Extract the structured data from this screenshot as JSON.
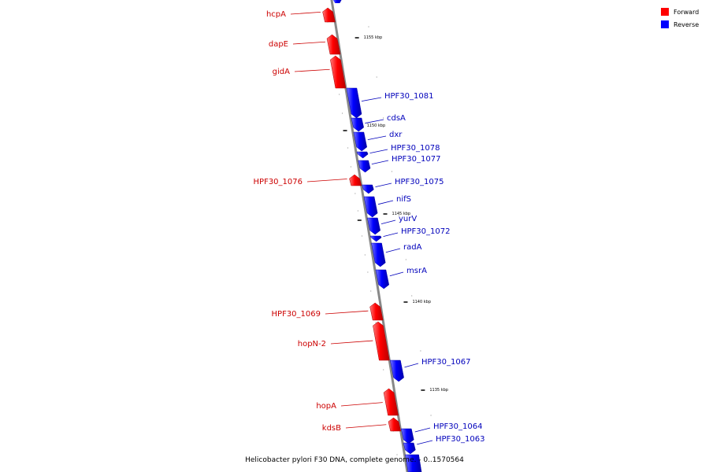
{
  "caption": "Helicobacter pylori F30 DNA, complete genome. - 0..1570564",
  "colors": {
    "forward": "#ff0000",
    "reverse": "#0000ff",
    "forward_text": "#cc0000",
    "reverse_text": "#0000bb",
    "axis": "#888888"
  },
  "legend": [
    {
      "label": "Forward",
      "strand": "forward"
    },
    {
      "label": "Reverse",
      "strand": "reverse"
    }
  ],
  "ticks": [
    {
      "label": "1155 kbp"
    },
    {
      "label": "1150 kbp"
    },
    {
      "label": "1145 kbp"
    },
    {
      "label": "1140 kbp"
    },
    {
      "label": "1135 kbp"
    }
  ],
  "genes": [
    {
      "name": "hcpA",
      "strand": "forward"
    },
    {
      "name": "dapE",
      "strand": "forward"
    },
    {
      "name": "gidA",
      "strand": "forward"
    },
    {
      "name": "HPF30_1081",
      "strand": "reverse"
    },
    {
      "name": "cdsA",
      "strand": "reverse"
    },
    {
      "name": "dxr",
      "strand": "reverse"
    },
    {
      "name": "HPF30_1078",
      "strand": "reverse"
    },
    {
      "name": "HPF30_1077",
      "strand": "reverse"
    },
    {
      "name": "HPF30_1076",
      "strand": "forward"
    },
    {
      "name": "HPF30_1075",
      "strand": "reverse"
    },
    {
      "name": "nifS",
      "strand": "reverse"
    },
    {
      "name": "yurV",
      "strand": "reverse"
    },
    {
      "name": "HPF30_1072",
      "strand": "reverse"
    },
    {
      "name": "radA",
      "strand": "reverse"
    },
    {
      "name": "msrA",
      "strand": "reverse"
    },
    {
      "name": "HPF30_1069",
      "strand": "forward"
    },
    {
      "name": "hopN-2",
      "strand": "forward"
    },
    {
      "name": "HPF30_1067",
      "strand": "reverse"
    },
    {
      "name": "hopA",
      "strand": "forward"
    },
    {
      "name": "kdsB",
      "strand": "forward"
    },
    {
      "name": "HPF30_1064",
      "strand": "reverse"
    },
    {
      "name": "HPF30_1063",
      "strand": "reverse"
    }
  ]
}
